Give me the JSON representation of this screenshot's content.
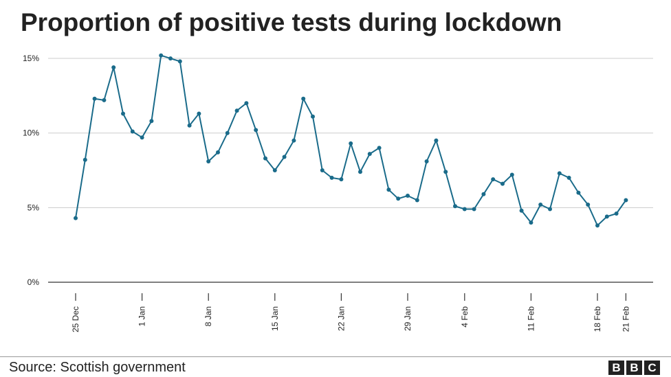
{
  "chart_data": {
    "type": "line",
    "title": "Proportion of positive tests during lockdown",
    "xlabel": "",
    "ylabel": "",
    "y_ticks": [
      0,
      5,
      10,
      15
    ],
    "y_tick_labels": [
      "0%",
      "5%",
      "10%",
      "15%"
    ],
    "ylim": [
      0,
      15.5
    ],
    "x_ticks": [
      {
        "day": 0,
        "label": "25 Dec"
      },
      {
        "day": 7,
        "label": "1 Jan"
      },
      {
        "day": 14,
        "label": "8 Jan"
      },
      {
        "day": 21,
        "label": "15 Jan"
      },
      {
        "day": 28,
        "label": "22 Jan"
      },
      {
        "day": 35,
        "label": "29 Jan"
      },
      {
        "day": 41,
        "label": "4 Feb"
      },
      {
        "day": 48,
        "label": "11 Feb"
      },
      {
        "day": 55,
        "label": "18 Feb"
      },
      {
        "day": 58,
        "label": "21 Feb"
      }
    ],
    "series": [
      {
        "name": "Proportion of positive tests (%)",
        "color": "#1a6b8a",
        "values": [
          4.3,
          8.2,
          12.3,
          12.2,
          14.4,
          11.3,
          10.1,
          9.7,
          10.8,
          15.2,
          15.0,
          14.8,
          10.5,
          11.3,
          8.1,
          8.7,
          10.0,
          11.5,
          12.0,
          10.2,
          8.3,
          7.5,
          8.4,
          9.5,
          12.3,
          11.1,
          7.5,
          7.0,
          6.9,
          9.3,
          7.4,
          8.6,
          9.0,
          6.2,
          5.6,
          5.8,
          5.5,
          8.1,
          9.5,
          7.4,
          5.1,
          4.9,
          4.9,
          5.9,
          6.9,
          6.6,
          7.2,
          4.8,
          4.0,
          5.2,
          4.9,
          7.3,
          7.0,
          6.0,
          5.2,
          3.8,
          4.4,
          4.6,
          5.5
        ]
      }
    ]
  },
  "footer": {
    "source": "Source: Scottish government",
    "logo_letters": [
      "B",
      "B",
      "C"
    ]
  }
}
